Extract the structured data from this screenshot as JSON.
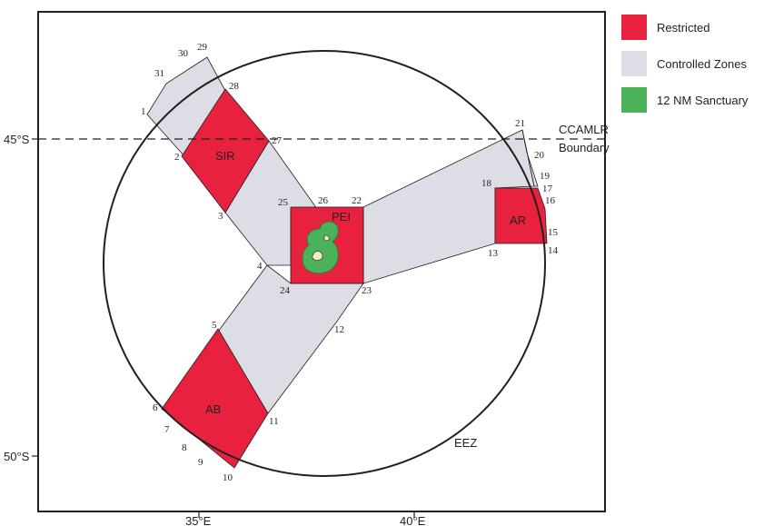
{
  "legend": [
    {
      "label": "Restricted",
      "color": "#e8213f"
    },
    {
      "label": "Controlled Zones",
      "color": "#dcdde5"
    },
    {
      "label": "12 NM Sanctuary",
      "color": "#4cb25a"
    }
  ],
  "colors": {
    "restricted": "#e8213f",
    "controlled": "#dcdde5",
    "sanctuary": "#4cb25a",
    "sanctuary_edge": "#2f7d3a",
    "island": "#f3eec2",
    "outline": "#231f20"
  },
  "axes": {
    "lat_labels": [
      "45°S",
      "50°S"
    ],
    "lon_labels": [
      "35°E",
      "40°E"
    ]
  },
  "boundary": {
    "line1": "CCAMLR",
    "line2": "Boundary"
  },
  "zones": {
    "sir": "SIR",
    "pei": "PEI",
    "ar": "AR",
    "ab": "AB",
    "eez": "EEZ"
  },
  "points": [
    "1",
    "2",
    "3",
    "4",
    "5",
    "6",
    "7",
    "8",
    "9",
    "10",
    "11",
    "12",
    "13",
    "14",
    "15",
    "16",
    "17",
    "18",
    "19",
    "20",
    "21",
    "22",
    "23",
    "24",
    "25",
    "26",
    "27",
    "28",
    "29",
    "30",
    "31"
  ]
}
